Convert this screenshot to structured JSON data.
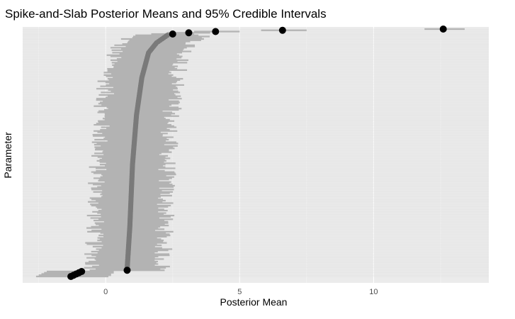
{
  "chart_data": {
    "type": "forest",
    "title": "Spike-and-Slab Posterior Means and 95% Credible Intervals",
    "xlabel": "Posterior Mean",
    "ylabel": "Parameter",
    "xlim": [
      -3.1,
      14.3
    ],
    "x_ticks": [
      0,
      5,
      10
    ],
    "x_tick_labels": [
      "0",
      "5",
      "10"
    ],
    "grid": true,
    "n_parameters": 200,
    "highlighted_points": [
      {
        "rank": 1,
        "mean": 12.6,
        "lower": 11.9,
        "upper": 13.4
      },
      {
        "rank": 2,
        "mean": 6.6,
        "lower": 5.8,
        "upper": 7.5
      },
      {
        "rank": 3,
        "mean": 4.1,
        "lower": 3.3,
        "upper": 5.0
      },
      {
        "rank": 4,
        "mean": 3.1,
        "lower": 2.3,
        "upper": 3.9
      },
      {
        "rank": 5,
        "mean": 2.5,
        "lower": 1.7,
        "upper": 3.3
      },
      {
        "rank": 195,
        "mean": 0.8,
        "lower": -0.6,
        "upper": 2.2
      },
      {
        "rank": 196,
        "mean": -0.9,
        "lower": -2.2,
        "upper": 0.3
      },
      {
        "rank": 197,
        "mean": -1.0,
        "lower": -2.3,
        "upper": 0.3
      },
      {
        "rank": 198,
        "mean": -1.1,
        "lower": -2.4,
        "upper": 0.2
      },
      {
        "rank": 199,
        "mean": -1.2,
        "lower": -2.5,
        "upper": 0.2
      },
      {
        "rank": 200,
        "mean": -1.3,
        "lower": -2.6,
        "upper": 0.1
      }
    ],
    "bulk_profile": {
      "description_free": true,
      "rank_range": [
        6,
        194
      ],
      "mean_at_rank": [
        [
          6,
          2.3
        ],
        [
          12,
          1.9
        ],
        [
          20,
          1.6
        ],
        [
          40,
          1.35
        ],
        [
          70,
          1.15
        ],
        [
          110,
          1.0
        ],
        [
          160,
          0.9
        ],
        [
          194,
          0.8
        ]
      ],
      "interval_half_width": 1.3
    },
    "colors": {
      "panel": "#ebebeb",
      "grid": "#ffffff",
      "interval": "#b3b3b3",
      "bulk_point": "#7a7a7a",
      "highlight_point": "#000000"
    }
  }
}
